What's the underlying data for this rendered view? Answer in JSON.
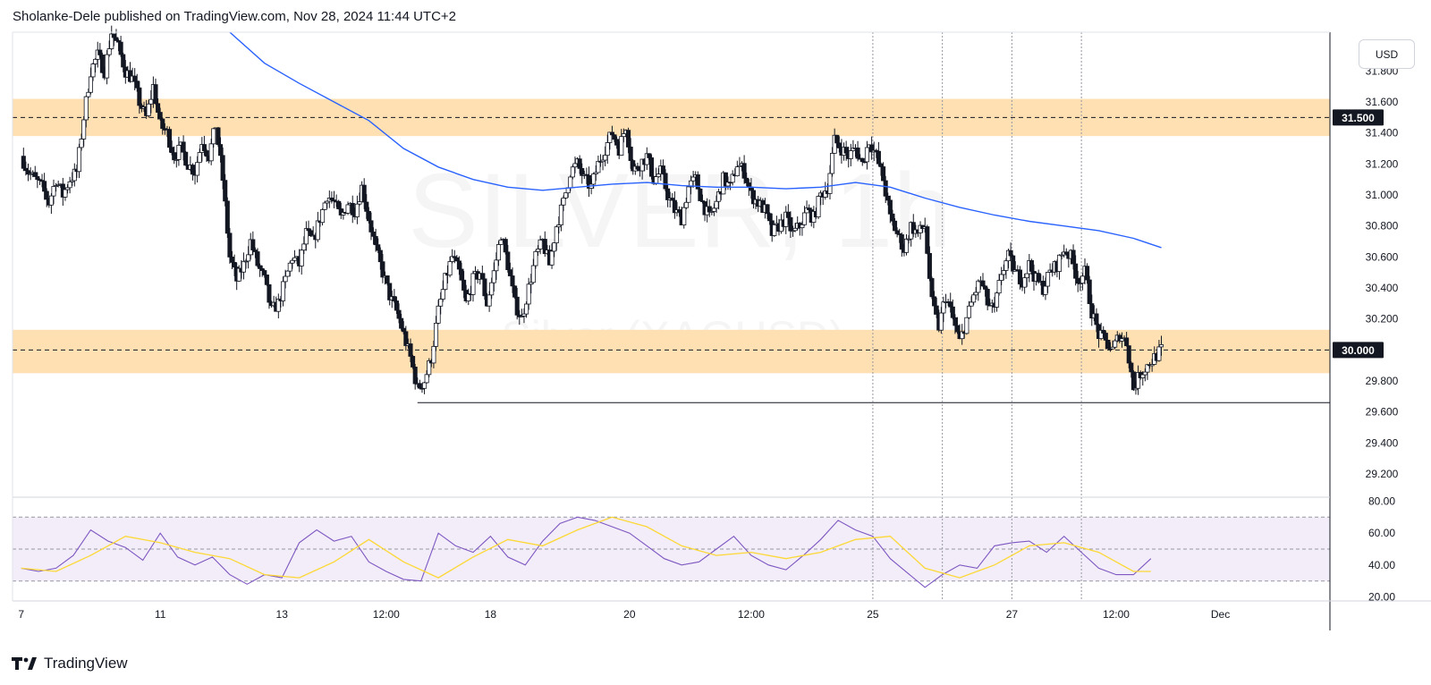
{
  "header": {
    "publisher_line": "Sholanke-Dele published on TradingView.com, Nov 28, 2024 11:44 UTC+2"
  },
  "footer": {
    "brand_name": "TradingView"
  },
  "price_scale": {
    "currency": "USD"
  },
  "watermark": {
    "symbol": "SILVER, 1h",
    "name": "Silver (XAGUSD)"
  },
  "colors": {
    "zone": "#ffe0b2",
    "ma": "#2962ff",
    "rsi": "#7e57c2",
    "rsi_ma": "#fdd835",
    "rsi_band": "#ede7f6",
    "candle": "#131722",
    "label_bg": "#131722",
    "grid_line": "#9598a1"
  },
  "chart_data": [
    {
      "type": "candlestick",
      "title": "",
      "y_ticks": [
        "31.800",
        "31.600",
        "31.400",
        "31.200",
        "31.000",
        "30.800",
        "30.600",
        "30.400",
        "30.200",
        "29.800",
        "29.600",
        "29.400",
        "29.200"
      ],
      "ylim": [
        29.05,
        32.05
      ],
      "price_labels": [
        "31.500",
        "30.000"
      ],
      "horizontal_lines": [
        31.5,
        30.0,
        29.66
      ],
      "zones": [
        {
          "from": 31.38,
          "to": 31.62
        },
        {
          "from": 29.85,
          "to": 30.13
        }
      ],
      "x_ticks": [
        "7",
        "11",
        "13",
        "12:00",
        "18",
        "20",
        "12:00",
        "25",
        "27",
        "12:00",
        "Dec"
      ],
      "x_tick_positions": [
        0,
        8,
        15,
        21,
        27,
        35,
        42,
        49,
        57,
        63,
        69
      ],
      "xlim": [
        -0.5,
        75.3
      ],
      "vertical_markers": [
        49.0,
        53.0,
        57.0,
        61.0
      ],
      "close_path": [
        [
          0,
          31.25
        ],
        [
          0.4,
          31.15
        ],
        [
          0.8,
          31.1
        ],
        [
          1.2,
          31.05
        ],
        [
          1.6,
          30.95
        ],
        [
          2.0,
          31.1
        ],
        [
          2.4,
          31.0
        ],
        [
          2.8,
          31.1
        ],
        [
          3.2,
          31.15
        ],
        [
          3.6,
          31.5
        ],
        [
          4.0,
          31.8
        ],
        [
          4.4,
          31.9
        ],
        [
          4.8,
          31.8
        ],
        [
          5.2,
          32.05
        ],
        [
          5.6,
          31.95
        ],
        [
          6.0,
          31.8
        ],
        [
          6.4,
          31.75
        ],
        [
          6.8,
          31.6
        ],
        [
          7.2,
          31.5
        ],
        [
          7.6,
          31.7
        ],
        [
          8.0,
          31.45
        ],
        [
          8.4,
          31.4
        ],
        [
          8.8,
          31.25
        ],
        [
          9.2,
          31.3
        ],
        [
          9.6,
          31.2
        ],
        [
          10.0,
          31.15
        ],
        [
          10.4,
          31.35
        ],
        [
          10.8,
          31.25
        ],
        [
          11.2,
          31.45
        ],
        [
          11.6,
          31.1
        ],
        [
          12.0,
          30.6
        ],
        [
          12.4,
          30.45
        ],
        [
          12.8,
          30.55
        ],
        [
          13.2,
          30.7
        ],
        [
          13.6,
          30.55
        ],
        [
          14.0,
          30.45
        ],
        [
          14.4,
          30.25
        ],
        [
          14.8,
          30.3
        ],
        [
          15.2,
          30.45
        ],
        [
          15.6,
          30.6
        ],
        [
          16.0,
          30.55
        ],
        [
          16.4,
          30.75
        ],
        [
          16.8,
          30.7
        ],
        [
          17.2,
          30.85
        ],
        [
          17.6,
          31.0
        ],
        [
          18.0,
          30.95
        ],
        [
          18.4,
          30.85
        ],
        [
          18.8,
          30.95
        ],
        [
          19.2,
          30.9
        ],
        [
          19.6,
          31.05
        ],
        [
          20.0,
          30.85
        ],
        [
          20.4,
          30.65
        ],
        [
          20.8,
          30.5
        ],
        [
          21.2,
          30.35
        ],
        [
          21.6,
          30.25
        ],
        [
          22.0,
          30.1
        ],
        [
          22.4,
          29.95
        ],
        [
          22.8,
          29.75
        ],
        [
          23.2,
          29.8
        ],
        [
          23.6,
          29.95
        ],
        [
          24.0,
          30.25
        ],
        [
          24.4,
          30.45
        ],
        [
          24.8,
          30.6
        ],
        [
          25.2,
          30.5
        ],
        [
          25.6,
          30.3
        ],
        [
          26.0,
          30.45
        ],
        [
          26.4,
          30.5
        ],
        [
          26.8,
          30.3
        ],
        [
          27.2,
          30.5
        ],
        [
          27.6,
          30.75
        ],
        [
          28.0,
          30.55
        ],
        [
          28.4,
          30.3
        ],
        [
          28.8,
          30.2
        ],
        [
          29.2,
          30.4
        ],
        [
          29.6,
          30.6
        ],
        [
          30.0,
          30.7
        ],
        [
          30.4,
          30.55
        ],
        [
          30.8,
          30.8
        ],
        [
          31.2,
          30.95
        ],
        [
          31.6,
          31.15
        ],
        [
          32.0,
          31.2
        ],
        [
          32.4,
          31.1
        ],
        [
          32.8,
          31.05
        ],
        [
          33.2,
          31.2
        ],
        [
          33.6,
          31.3
        ],
        [
          34.0,
          31.4
        ],
        [
          34.4,
          31.3
        ],
        [
          34.8,
          31.45
        ],
        [
          35.2,
          31.15
        ],
        [
          35.6,
          31.2
        ],
        [
          36.0,
          31.25
        ],
        [
          36.4,
          31.1
        ],
        [
          36.8,
          31.15
        ],
        [
          37.2,
          31.0
        ],
        [
          37.6,
          30.9
        ],
        [
          38.0,
          30.85
        ],
        [
          38.4,
          31.05
        ],
        [
          38.8,
          31.1
        ],
        [
          39.2,
          30.95
        ],
        [
          39.6,
          30.85
        ],
        [
          40.0,
          30.95
        ],
        [
          40.4,
          31.1
        ],
        [
          40.8,
          31.05
        ],
        [
          41.2,
          31.2
        ],
        [
          41.6,
          31.15
        ],
        [
          42.0,
          31.0
        ],
        [
          42.4,
          30.95
        ],
        [
          42.8,
          30.9
        ],
        [
          43.2,
          30.75
        ],
        [
          43.6,
          30.8
        ],
        [
          44.0,
          30.85
        ],
        [
          44.4,
          30.75
        ],
        [
          44.8,
          30.8
        ],
        [
          45.2,
          30.9
        ],
        [
          45.6,
          30.85
        ],
        [
          46.0,
          31.0
        ],
        [
          46.4,
          31.05
        ],
        [
          46.8,
          31.35
        ],
        [
          47.2,
          31.3
        ],
        [
          47.6,
          31.25
        ],
        [
          48.0,
          31.3
        ],
        [
          48.4,
          31.2
        ],
        [
          48.8,
          31.35
        ],
        [
          49.2,
          31.25
        ],
        [
          49.6,
          31.1
        ],
        [
          50.0,
          30.85
        ],
        [
          50.4,
          30.75
        ],
        [
          50.8,
          30.65
        ],
        [
          51.2,
          30.8
        ],
        [
          51.6,
          30.75
        ],
        [
          52.0,
          30.8
        ],
        [
          52.4,
          30.3
        ],
        [
          52.8,
          30.15
        ],
        [
          53.2,
          30.35
        ],
        [
          53.6,
          30.2
        ],
        [
          54.0,
          30.05
        ],
        [
          54.4,
          30.2
        ],
        [
          54.8,
          30.35
        ],
        [
          55.2,
          30.45
        ],
        [
          55.6,
          30.3
        ],
        [
          56.0,
          30.25
        ],
        [
          56.4,
          30.5
        ],
        [
          56.8,
          30.6
        ],
        [
          57.2,
          30.5
        ],
        [
          57.6,
          30.45
        ],
        [
          58.0,
          30.55
        ],
        [
          58.4,
          30.45
        ],
        [
          58.8,
          30.4
        ],
        [
          59.2,
          30.5
        ],
        [
          59.6,
          30.55
        ],
        [
          60.0,
          30.65
        ],
        [
          60.4,
          30.6
        ],
        [
          60.8,
          30.45
        ],
        [
          61.2,
          30.5
        ],
        [
          61.6,
          30.25
        ],
        [
          62.0,
          30.1
        ],
        [
          62.4,
          30.05
        ],
        [
          62.8,
          30.0
        ],
        [
          63.2,
          30.1
        ],
        [
          63.6,
          30.05
        ],
        [
          64.0,
          29.75
        ],
        [
          64.4,
          29.85
        ],
        [
          64.8,
          29.9
        ],
        [
          65.2,
          29.95
        ],
        [
          65.6,
          30.0
        ]
      ],
      "moving_average": [
        [
          12.0,
          32.05
        ],
        [
          14.0,
          31.85
        ],
        [
          16.0,
          31.72
        ],
        [
          18.0,
          31.6
        ],
        [
          20.0,
          31.48
        ],
        [
          22.0,
          31.3
        ],
        [
          24.0,
          31.18
        ],
        [
          26.0,
          31.1
        ],
        [
          28.0,
          31.05
        ],
        [
          30.0,
          31.03
        ],
        [
          32.0,
          31.05
        ],
        [
          34.0,
          31.07
        ],
        [
          36.0,
          31.08
        ],
        [
          38.0,
          31.06
        ],
        [
          40.0,
          31.05
        ],
        [
          42.0,
          31.05
        ],
        [
          44.0,
          31.04
        ],
        [
          46.0,
          31.05
        ],
        [
          48.0,
          31.08
        ],
        [
          50.0,
          31.05
        ],
        [
          52.0,
          30.98
        ],
        [
          54.0,
          30.92
        ],
        [
          56.0,
          30.87
        ],
        [
          58.0,
          30.83
        ],
        [
          60.0,
          30.8
        ],
        [
          62.0,
          30.77
        ],
        [
          64.0,
          30.72
        ],
        [
          65.6,
          30.66
        ]
      ]
    },
    {
      "type": "line",
      "title": "",
      "y_ticks": [
        "80.00",
        "60.00",
        "40.00",
        "20.00"
      ],
      "ylim": [
        17.5,
        82.5
      ],
      "band": [
        30,
        70
      ],
      "guide_lines": [
        30,
        50,
        70
      ],
      "series": [
        {
          "name": "",
          "role": "rsi",
          "values": [
            [
              0,
              38
            ],
            [
              1,
              36
            ],
            [
              2,
              38
            ],
            [
              3,
              46
            ],
            [
              4,
              62
            ],
            [
              5,
              55
            ],
            [
              6,
              51
            ],
            [
              7,
              43
            ],
            [
              8,
              60
            ],
            [
              9,
              45
            ],
            [
              10,
              40
            ],
            [
              11,
              45
            ],
            [
              12,
              34
            ],
            [
              13,
              28
            ],
            [
              14,
              34
            ],
            [
              15,
              32
            ],
            [
              16,
              54
            ],
            [
              17,
              62
            ],
            [
              18,
              55
            ],
            [
              19,
              58
            ],
            [
              20,
              42
            ],
            [
              21,
              36
            ],
            [
              22,
              31
            ],
            [
              23,
              30
            ],
            [
              24,
              60
            ],
            [
              25,
              52
            ],
            [
              26,
              48
            ],
            [
              27,
              58
            ],
            [
              28,
              45
            ],
            [
              29,
              40
            ],
            [
              30,
              55
            ],
            [
              31,
              66
            ],
            [
              32,
              70
            ],
            [
              33,
              68
            ],
            [
              34,
              64
            ],
            [
              35,
              60
            ],
            [
              36,
              52
            ],
            [
              37,
              44
            ],
            [
              38,
              40
            ],
            [
              39,
              42
            ],
            [
              40,
              50
            ],
            [
              41,
              58
            ],
            [
              42,
              46
            ],
            [
              43,
              40
            ],
            [
              44,
              37
            ],
            [
              45,
              46
            ],
            [
              46,
              56
            ],
            [
              47,
              68
            ],
            [
              48,
              62
            ],
            [
              49,
              58
            ],
            [
              50,
              44
            ],
            [
              51,
              35
            ],
            [
              52,
              26
            ],
            [
              53,
              34
            ],
            [
              54,
              40
            ],
            [
              55,
              38
            ],
            [
              56,
              52
            ],
            [
              57,
              54
            ],
            [
              58,
              55
            ],
            [
              59,
              48
            ],
            [
              60,
              58
            ],
            [
              61,
              48
            ],
            [
              62,
              38
            ],
            [
              63,
              34
            ],
            [
              64,
              34
            ],
            [
              65,
              44
            ]
          ]
        },
        {
          "name": "",
          "role": "rsi_ma",
          "values": [
            [
              0,
              38
            ],
            [
              2,
              36
            ],
            [
              4,
              46
            ],
            [
              6,
              58
            ],
            [
              8,
              54
            ],
            [
              10,
              48
            ],
            [
              12,
              44
            ],
            [
              14,
              34
            ],
            [
              16,
              32
            ],
            [
              18,
              42
            ],
            [
              20,
              56
            ],
            [
              22,
              42
            ],
            [
              24,
              32
            ],
            [
              26,
              45
            ],
            [
              28,
              56
            ],
            [
              30,
              52
            ],
            [
              32,
              62
            ],
            [
              34,
              70
            ],
            [
              36,
              64
            ],
            [
              38,
              52
            ],
            [
              40,
              46
            ],
            [
              42,
              48
            ],
            [
              44,
              44
            ],
            [
              46,
              48
            ],
            [
              48,
              56
            ],
            [
              50,
              58
            ],
            [
              52,
              38
            ],
            [
              54,
              32
            ],
            [
              56,
              40
            ],
            [
              58,
              52
            ],
            [
              60,
              54
            ],
            [
              62,
              48
            ],
            [
              64,
              36
            ],
            [
              65,
              36
            ]
          ]
        }
      ]
    }
  ]
}
